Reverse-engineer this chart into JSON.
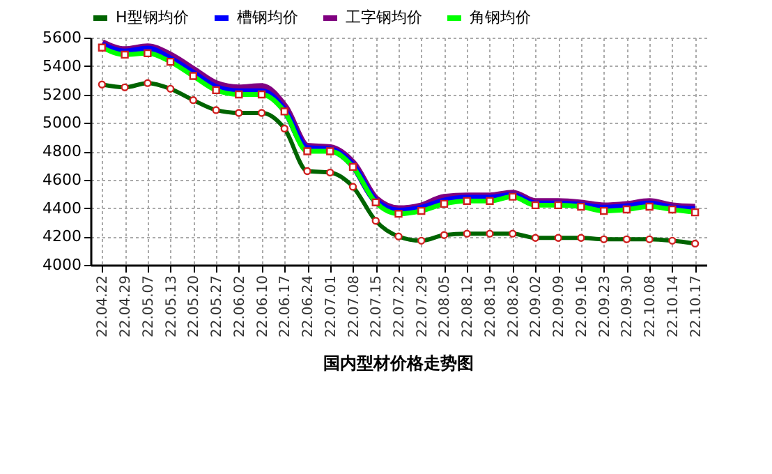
{
  "chart_data": {
    "type": "line",
    "title": "国内型材价格走势图",
    "categories": [
      "22.04.22",
      "22.04.29",
      "22.05.07",
      "22.05.13",
      "22.05.20",
      "22.05.27",
      "22.06.02",
      "22.06.10",
      "22.06.17",
      "22.06.24",
      "22.07.01",
      "22.07.08",
      "22.07.15",
      "22.07.22",
      "22.07.29",
      "22.08.05",
      "22.08.12",
      "22.08.19",
      "22.08.26",
      "22.09.02",
      "22.09.09",
      "22.09.16",
      "22.09.23",
      "22.09.30",
      "22.10.08",
      "22.10.14",
      "22.10.17"
    ],
    "series": [
      {
        "name": "H型钢均价",
        "color": "#006400",
        "marker": "circle",
        "values": [
          5270,
          5250,
          5280,
          5240,
          5160,
          5090,
          5070,
          5070,
          4960,
          4660,
          4650,
          4550,
          4310,
          4200,
          4170,
          4210,
          4220,
          4220,
          4220,
          4190,
          4190,
          4190,
          4180,
          4180,
          4180,
          4170,
          4150
        ]
      },
      {
        "name": "槽钢均价",
        "color": "#0000ff",
        "marker": "none",
        "values": [
          5550,
          5500,
          5520,
          5450,
          5350,
          5250,
          5220,
          5220,
          5090,
          4820,
          4810,
          4700,
          4450,
          4380,
          4400,
          4450,
          4470,
          4470,
          4490,
          4430,
          4430,
          4420,
          4400,
          4410,
          4430,
          4400,
          4390
        ]
      },
      {
        "name": "工字钢均价",
        "color": "#800080",
        "marker": "none",
        "values": [
          5560,
          5510,
          5530,
          5470,
          5370,
          5270,
          5240,
          5250,
          5110,
          4830,
          4820,
          4710,
          4460,
          4390,
          4410,
          4470,
          4480,
          4480,
          4500,
          4440,
          4440,
          4430,
          4410,
          4420,
          4440,
          4410,
          4400
        ]
      },
      {
        "name": "角钢均价",
        "color": "#00ff00",
        "marker": "square",
        "values": [
          5530,
          5480,
          5490,
          5430,
          5330,
          5230,
          5200,
          5200,
          5080,
          4800,
          4800,
          4690,
          4440,
          4360,
          4380,
          4430,
          4450,
          4450,
          4480,
          4420,
          4420,
          4410,
          4380,
          4390,
          4410,
          4390,
          4370
        ]
      }
    ],
    "ylim": [
      4000,
      5600
    ],
    "yticks": [
      4000,
      4200,
      4400,
      4600,
      4800,
      5000,
      5200,
      5400,
      5600
    ],
    "grid": true,
    "legend": "top",
    "line_style": "solid"
  }
}
